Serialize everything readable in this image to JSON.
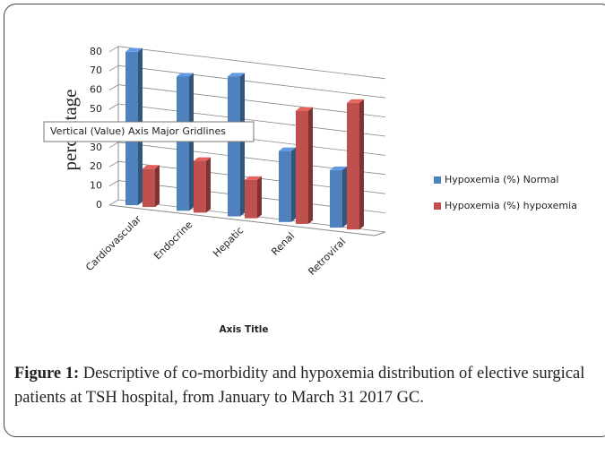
{
  "chart_data": {
    "type": "bar3d",
    "y_axis_title": "percentage",
    "x_axis_title": "Axis Title",
    "tooltip": "Vertical (Value) Axis Major Gridlines",
    "categories": [
      "Cardiovascular",
      "Endocrine",
      "Hepatic",
      "Renal",
      "Retroviral"
    ],
    "series": [
      {
        "name": "Hypoxemia (%) Normal",
        "color": "#4f81bd",
        "values": [
          80,
          70,
          73,
          37,
          30
        ]
      },
      {
        "name": "Hypoxemia (%) hypoxemia",
        "color": "#c0504d",
        "values": [
          20,
          27,
          20,
          59,
          66
        ]
      }
    ],
    "ylim": [
      0,
      80
    ],
    "yticks": [
      0,
      10,
      20,
      30,
      40,
      50,
      60,
      70,
      80
    ],
    "grid": true,
    "legend": "right"
  },
  "caption": {
    "label": "Figure 1:",
    "text": "Descriptive of co-morbidity and hypoxemia distribution of elective surgical patients at TSH hospital, from January to March 31 2017 GC."
  }
}
